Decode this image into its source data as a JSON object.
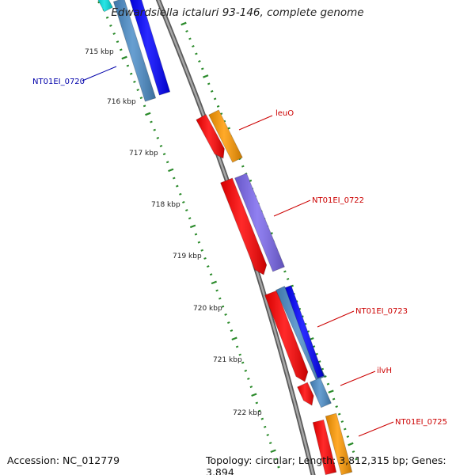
{
  "title": "Edwardsiella ictaluri 93-146, complete genome",
  "footer": {
    "accession": "Accession: NC_012779",
    "stats": "Topology: circular; Length: 3,812,315 bp; Genes: 3,894"
  },
  "tick_labels": [
    "715 kbp",
    "716 kbp",
    "717 kbp",
    "718 kbp",
    "719 kbp",
    "720 kbp",
    "721 kbp",
    "722 kbp"
  ],
  "feature_labels": [
    {
      "text": "NT01EI_0720",
      "color": "#0000aa"
    },
    {
      "text": "leuO",
      "color": "#cc0000"
    },
    {
      "text": "NT01EI_0722",
      "color": "#cc0000"
    },
    {
      "text": "NT01EI_0723",
      "color": "#cc0000"
    },
    {
      "text": "ilvH",
      "color": "#cc0000"
    },
    {
      "text": "NT01EI_0725",
      "color": "#cc0000"
    }
  ],
  "colors": {
    "backbone": "#808080",
    "tick": "#2a8a2a",
    "red": "#ff0000",
    "orange": "#ff9900",
    "purple": "#7b68ee",
    "blue": "#0000ff",
    "steelblue": "#4a8cc8",
    "cyan": "#00e0e0"
  }
}
